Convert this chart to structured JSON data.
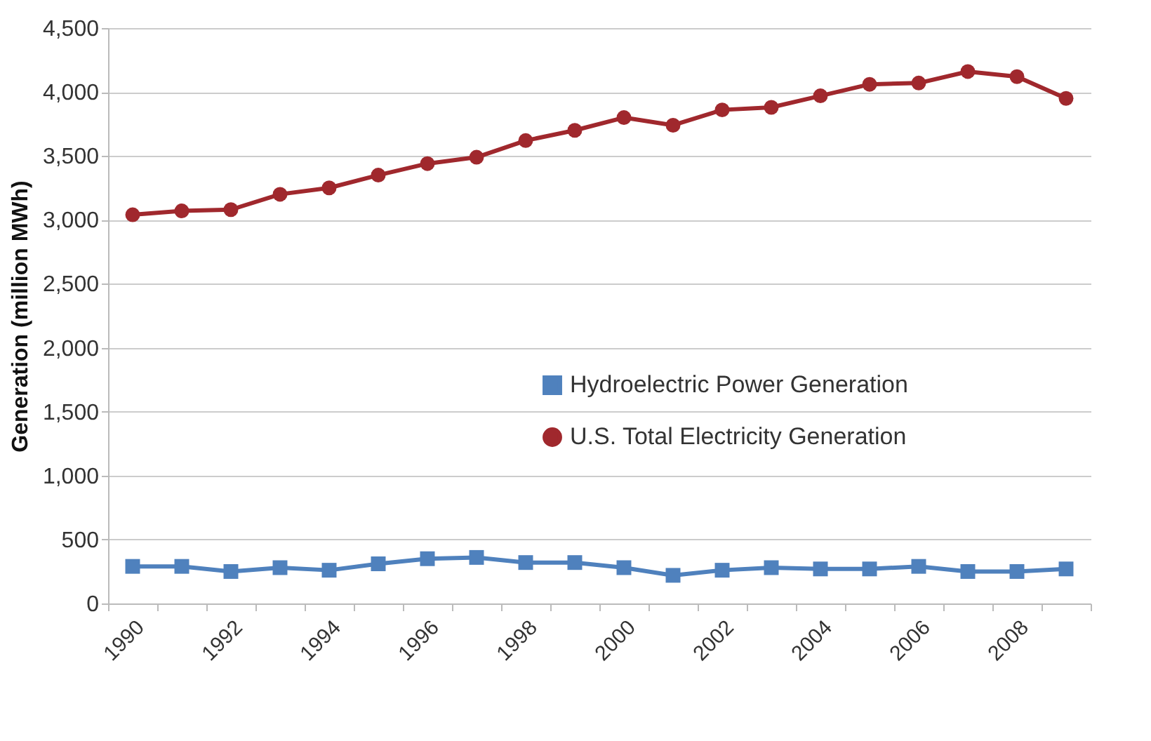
{
  "chart_data": {
    "type": "line",
    "ylabel": "Generation (million MWh)",
    "categories": [
      "1990",
      null,
      "1992",
      null,
      "1994",
      null,
      "1996",
      null,
      "1998",
      null,
      "2000",
      null,
      "2002",
      null,
      "2004",
      null,
      "2006",
      null,
      "2008",
      null
    ],
    "series": [
      {
        "name": "Hydroelectric Power Generation",
        "color": "#4f81bd",
        "marker": "square",
        "values": [
          290,
          290,
          250,
          280,
          260,
          310,
          350,
          360,
          320,
          320,
          280,
          220,
          260,
          280,
          270,
          270,
          290,
          250,
          250,
          270
        ]
      },
      {
        "name": "U.S. Total Electricity Generation",
        "color": "#a0282d",
        "marker": "circle",
        "values": [
          3040,
          3070,
          3080,
          3200,
          3250,
          3350,
          3440,
          3490,
          3620,
          3700,
          3800,
          3740,
          3860,
          3880,
          3970,
          4060,
          4070,
          4160,
          4120,
          3950
        ]
      }
    ],
    "ylim": [
      0,
      4500
    ],
    "yticks": [
      0,
      500,
      {
        "value": 1000,
        "label": "1,000"
      },
      {
        "value": 1500,
        "label": "1,500"
      },
      {
        "value": 2000,
        "label": "2,000"
      },
      {
        "value": 2500,
        "label": "2,500"
      },
      {
        "value": 3000,
        "label": "3,000"
      },
      {
        "value": 3500,
        "label": "3,500"
      },
      {
        "value": 4000,
        "label": "4,000"
      },
      {
        "value": 4500,
        "label": "4,500"
      }
    ],
    "grid": "y",
    "legend": "right",
    "line_style": "solid"
  }
}
